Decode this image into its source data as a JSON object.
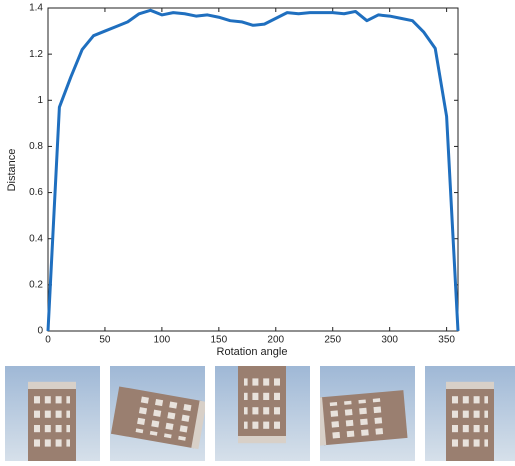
{
  "chart_data": {
    "type": "line",
    "x_label": "Rotation angle",
    "y_label": "Distance",
    "x": [
      0,
      10,
      20,
      30,
      40,
      50,
      60,
      70,
      80,
      90,
      100,
      110,
      120,
      130,
      140,
      150,
      160,
      170,
      180,
      190,
      200,
      210,
      220,
      230,
      240,
      250,
      260,
      270,
      280,
      290,
      300,
      310,
      320,
      330,
      340,
      350,
      360
    ],
    "series": [
      {
        "color": "#1f6fbf",
        "values": [
          0,
          0.97,
          1.1,
          1.22,
          1.28,
          1.3,
          1.32,
          1.34,
          1.375,
          1.39,
          1.37,
          1.38,
          1.375,
          1.365,
          1.37,
          1.36,
          1.345,
          1.34,
          1.325,
          1.33,
          1.355,
          1.38,
          1.375,
          1.38,
          1.38,
          1.38,
          1.375,
          1.385,
          1.345,
          1.37,
          1.365,
          1.355,
          1.345,
          1.295,
          1.225,
          0.93,
          0
        ]
      }
    ],
    "xlim": [
      0,
      360
    ],
    "ylim": [
      0,
      1.4
    ],
    "xticks": [
      0,
      50,
      100,
      150,
      200,
      250,
      300,
      350
    ],
    "yticks": [
      0,
      0.2,
      0.4,
      0.6,
      0.8,
      1,
      1.2,
      1.4
    ]
  }
}
